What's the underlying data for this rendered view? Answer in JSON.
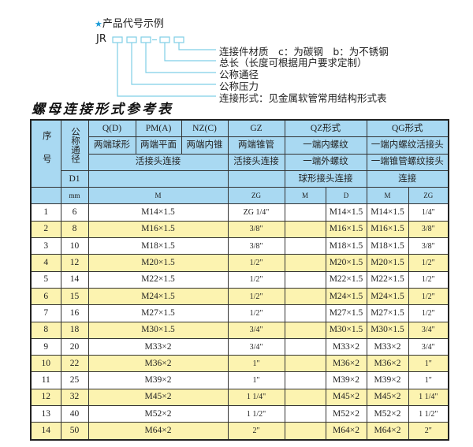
{
  "legend": {
    "title": "产品代号示例",
    "star_icon": "star-icon",
    "code_prefix": "JR",
    "dash": "-",
    "labels": [
      "连接件材质　c：为碳钢　b：为不锈钢",
      "总长（长度可根据用户要求定制）",
      "公称通径",
      "公称压力",
      "连接形式：见金属软管常用结构形式表"
    ],
    "line_color": "#7fcfe6"
  },
  "title": "螺母连接形式参考表",
  "table": {
    "header": {
      "seq": "序号",
      "nominal": "公称通径",
      "qd": "Q(D)",
      "pm": "PM(A)",
      "nz": "NZ(C)",
      "gz": "GZ",
      "qz": "QZ形式",
      "qg": "QG形式",
      "qd_desc": "两端球形",
      "pm_desc": "两端平面",
      "nz_desc": "两端内锥",
      "gz_desc": "两端锥管",
      "qz_desc1": "一端内螺纹",
      "qg_desc1": "一端内螺纹活接头",
      "union1": "活接头连接",
      "union2": "活接头连接",
      "qz_desc2": "一端外螺纹",
      "qg_desc2": "一端锥管螺纹接头",
      "d1": "D1",
      "qz_desc3": "球形接头连接",
      "qg_desc3": "连接",
      "mm": "mm",
      "m": "M",
      "zg": "ZG",
      "qz_m": "M",
      "qz_d": "D",
      "qg_m": "M",
      "qg_zg": "ZG"
    },
    "header_color": "#a9d9f2",
    "stripe_color": "#fcf3b0",
    "rows": [
      {
        "no": "1",
        "d1": "6",
        "m": "M14×1.5",
        "zg": "ZG 1/4\"",
        "qz_m": "",
        "qz_d": "M14×1.5",
        "qg_m": "M14×1.5",
        "qg_zg": "1/4\""
      },
      {
        "no": "2",
        "d1": "8",
        "m": "M16×1.5",
        "zg": "3/8\"",
        "qz_m": "",
        "qz_d": "M16×1.5",
        "qg_m": "M16×1.5",
        "qg_zg": "3/8\""
      },
      {
        "no": "3",
        "d1": "10",
        "m": "M18×1.5",
        "zg": "3/8\"",
        "qz_m": "",
        "qz_d": "M18×1.5",
        "qg_m": "M18×1.5",
        "qg_zg": "3/8\""
      },
      {
        "no": "4",
        "d1": "12",
        "m": "M20×1.5",
        "zg": "1/2\"",
        "qz_m": "",
        "qz_d": "M20×1.5",
        "qg_m": "M20×1.5",
        "qg_zg": "1/2\""
      },
      {
        "no": "5",
        "d1": "14",
        "m": "M22×1.5",
        "zg": "1/2\"",
        "qz_m": "",
        "qz_d": "M22×1.5",
        "qg_m": "M22×1.5",
        "qg_zg": "1/2\""
      },
      {
        "no": "6",
        "d1": "15",
        "m": "M24×1.5",
        "zg": "1/2\"",
        "qz_m": "",
        "qz_d": "M24×1.5",
        "qg_m": "M24×1.5",
        "qg_zg": "1/2\""
      },
      {
        "no": "7",
        "d1": "16",
        "m": "M27×1.5",
        "zg": "1/2\"",
        "qz_m": "",
        "qz_d": "M27×1.5",
        "qg_m": "M27×1.5",
        "qg_zg": "1/2\""
      },
      {
        "no": "8",
        "d1": "18",
        "m": "M30×1.5",
        "zg": "3/4\"",
        "qz_m": "",
        "qz_d": "M30×1.5",
        "qg_m": "M30×1.5",
        "qg_zg": "3/4\""
      },
      {
        "no": "9",
        "d1": "20",
        "m": "M33×2",
        "zg": "3/4\"",
        "qz_m": "",
        "qz_d": "M33×2",
        "qg_m": "M33×2",
        "qg_zg": "3/4\""
      },
      {
        "no": "10",
        "d1": "22",
        "m": "M36×2",
        "zg": "1\"",
        "qz_m": "",
        "qz_d": "M36×2",
        "qg_m": "M36×2",
        "qg_zg": "1\""
      },
      {
        "no": "11",
        "d1": "25",
        "m": "M39×2",
        "zg": "1\"",
        "qz_m": "",
        "qz_d": "M39×2",
        "qg_m": "M39×2",
        "qg_zg": "1\""
      },
      {
        "no": "12",
        "d1": "32",
        "m": "M45×2",
        "zg": "1 1/4\"",
        "qz_m": "",
        "qz_d": "M45×2",
        "qg_m": "M45×2",
        "qg_zg": "1 1/4\""
      },
      {
        "no": "13",
        "d1": "40",
        "m": "M52×2",
        "zg": "1 1/2\"",
        "qz_m": "",
        "qz_d": "M52×2",
        "qg_m": "M52×2",
        "qg_zg": "1 1/2\""
      },
      {
        "no": "14",
        "d1": "50",
        "m": "M64×2",
        "zg": "2\"",
        "qz_m": "",
        "qz_d": "M64×2",
        "qg_m": "M64×2",
        "qg_zg": "2\""
      }
    ]
  }
}
